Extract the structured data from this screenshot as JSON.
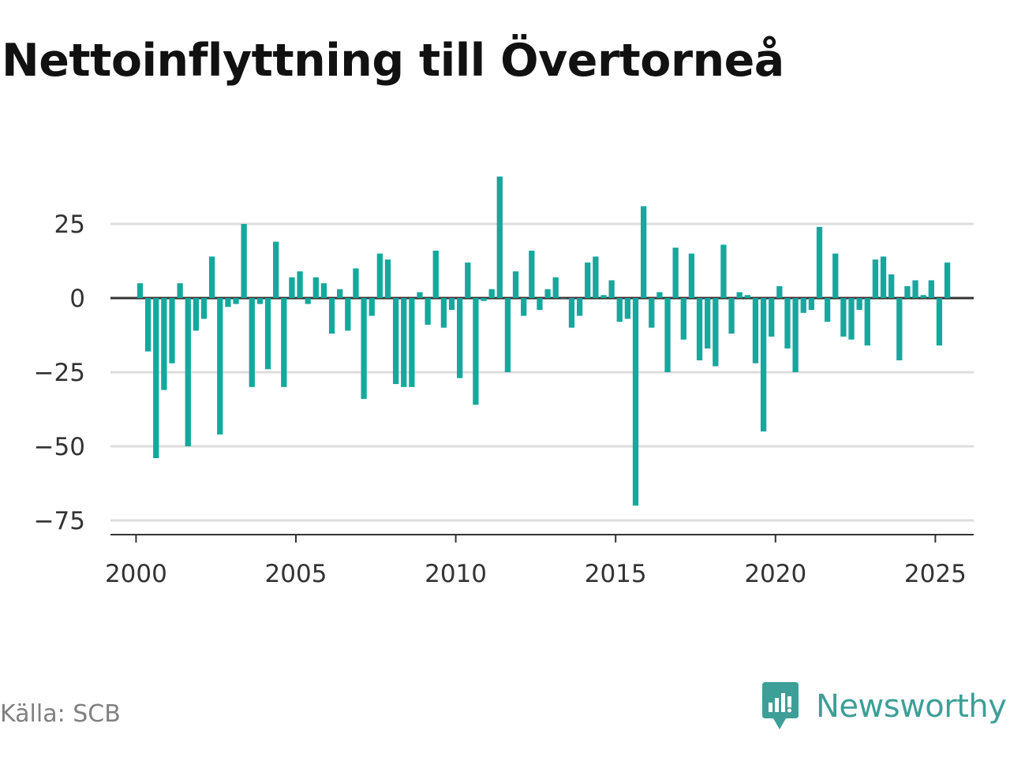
{
  "header": {
    "title": "Nettoinflyttning till Övertorneå"
  },
  "footer": {
    "source": "Källa: SCB",
    "brand": "Newsworthy"
  },
  "colors": {
    "bar": "#13a99d",
    "grid": "#dddddd",
    "axis": "#333333",
    "brand": "#3d9f97"
  },
  "chart_data": {
    "type": "bar",
    "title": "Nettoinflyttning till Övertorneå",
    "xlabel": "",
    "ylabel": "",
    "frequency": "quarterly",
    "x_start": 2000,
    "x_ticks": [
      2000,
      2005,
      2010,
      2015,
      2020,
      2025
    ],
    "y_ticks": [
      25,
      0,
      -25,
      -50,
      -75
    ],
    "y_tick_labels": [
      "25",
      "0",
      "−25",
      "−50",
      "−75"
    ],
    "ylim": [
      -80,
      42
    ],
    "xlim": [
      1999.2,
      2026.2
    ],
    "grid": true,
    "values": [
      5,
      -18,
      -54,
      -31,
      -22,
      5,
      -50,
      -11,
      -7,
      14,
      -46,
      -3,
      -2,
      25,
      -30,
      -2,
      -24,
      19,
      -30,
      7,
      9,
      -2,
      7,
      5,
      -12,
      3,
      -11,
      10,
      -34,
      -6,
      15,
      13,
      -29,
      -30,
      -30,
      2,
      -9,
      16,
      -10,
      -4,
      -27,
      12,
      -36,
      -1,
      3,
      41,
      -25,
      9,
      -6,
      16,
      -4,
      3,
      7,
      0,
      -10,
      -6,
      12,
      14,
      1,
      6,
      -8,
      -7,
      -70,
      31,
      -10,
      2,
      -25,
      17,
      -14,
      15,
      -21,
      -17,
      -23,
      18,
      -12,
      2,
      1,
      -22,
      -45,
      -13,
      4,
      -17,
      -25,
      -5,
      -4,
      24,
      -8,
      15,
      -13,
      -14,
      -4,
      -16,
      13,
      14,
      8,
      -21,
      4,
      6,
      1,
      6,
      -16,
      12
    ]
  }
}
